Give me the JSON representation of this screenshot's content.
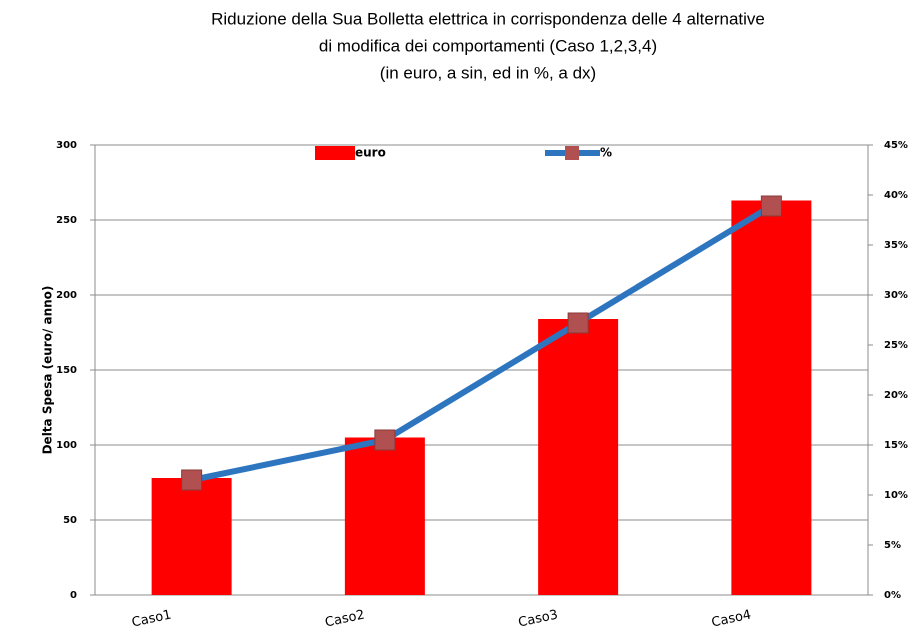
{
  "chart_data": {
    "type": "combo",
    "title": [
      "Riduzione della Sua Bolletta elettrica  in corrispondenza delle 4 alternative",
      "di modifica dei comportamenti (Caso 1,2,3,4)",
      "(in euro, a sin, ed in %, a dx)"
    ],
    "y_label": "Delta Spesa (euro/ anno)",
    "categories": [
      "Caso1",
      "Caso2",
      "Caso3",
      "Caso4"
    ],
    "series": [
      {
        "name": "euro",
        "type": "bar",
        "color": "#ff0000",
        "values": [
          78,
          105,
          184,
          263
        ]
      },
      {
        "name": "%",
        "type": "line",
        "axis": "y2",
        "color": "#2e75c0",
        "marker_color": "#b05050",
        "values": [
          11.5,
          15.5,
          27.2,
          38.9
        ]
      }
    ],
    "ylim": [
      0,
      300
    ],
    "yticks": [
      0,
      50,
      100,
      150,
      200,
      250,
      300
    ],
    "y2lim": [
      0,
      45
    ],
    "y2ticks": [
      {
        "value": 0,
        "label": "0%"
      },
      {
        "value": 5,
        "label": "5%"
      },
      {
        "value": 10,
        "label": "10%"
      },
      {
        "value": 15,
        "label": "15%"
      },
      {
        "value": 20,
        "label": "20%"
      },
      {
        "value": 25,
        "label": "25%"
      },
      {
        "value": 30,
        "label": "30%"
      },
      {
        "value": 35,
        "label": "35%"
      },
      {
        "value": 40,
        "label": "40%"
      },
      {
        "value": 45,
        "label": "45%"
      }
    ],
    "grid": true,
    "legend": "top"
  }
}
